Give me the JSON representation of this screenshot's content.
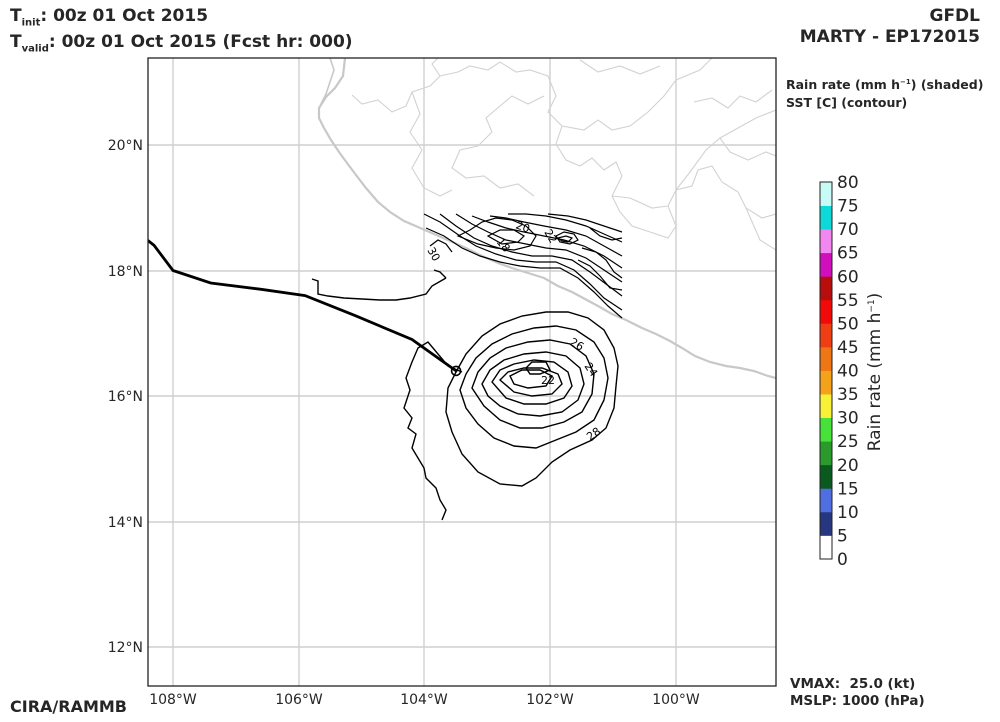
{
  "header": {
    "t_init_sym": "T",
    "t_init_sub": "init",
    "t_init_value": ":  00z 01 Oct 2015",
    "t_valid_sym": "T",
    "t_valid_sub": "valid",
    "t_valid_value": ": 00z 01 Oct 2015 (Fcst hr: 000)",
    "model": "GFDL",
    "storm": "MARTY - EP172015"
  },
  "legend": {
    "rain_line_pre": "Rain rate (mm h",
    "rain_line_exp": "−1",
    "rain_line_post": ") (shaded)",
    "sst_line": "SST [C] (contour)"
  },
  "footer": {
    "credit": "CIRA/RAMMB",
    "vmax": "VMAX:  25.0 (kt)",
    "mslp": "MSLP: 1000 (hPa)"
  },
  "axes": {
    "lat_labels": [
      "20°N",
      "18°N",
      "16°N",
      "14°N",
      "12°N"
    ],
    "lon_labels": [
      "108°W",
      "106°W",
      "104°W",
      "102°W",
      "100°W"
    ]
  },
  "colorbar": {
    "title_pre": "Rain rate (mm h",
    "title_exp": "−1",
    "title_post": ")",
    "ticks": [
      "0",
      "5",
      "10",
      "15",
      "20",
      "25",
      "30",
      "35",
      "40",
      "45",
      "50",
      "55",
      "60",
      "65",
      "70",
      "75",
      "80"
    ],
    "colors": [
      "#ffffff",
      "#26377f",
      "#4f6ee0",
      "#0a5a1f",
      "#2b9a2c",
      "#46e23a",
      "#f7f238",
      "#f4a21c",
      "#ef7615",
      "#ef3d14",
      "#f20a0a",
      "#b70d0d",
      "#d10ebd",
      "#f287ef",
      "#0ed8d8",
      "#c8faf6"
    ]
  },
  "contour_labels": [
    "30",
    "22",
    "26",
    "24",
    "28",
    "20",
    "22",
    "18"
  ],
  "track": {
    "lon": [
      -108.4,
      -108.3,
      -108.0,
      -107.4,
      -106.6,
      -105.9,
      -105.1,
      -104.2,
      -103.5
    ],
    "lat": [
      18.48,
      18.4,
      18.0,
      17.8,
      17.7,
      17.6,
      17.28,
      16.9,
      16.4
    ]
  }
}
